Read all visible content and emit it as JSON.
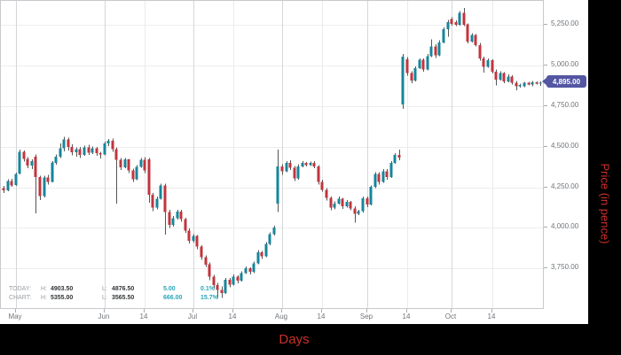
{
  "colors": {
    "up": "#17859a",
    "down": "#c1353e",
    "wick": "#555555",
    "grid_h": "#ededee",
    "grid_v_major": "#d4d6d9",
    "grid_v_minor": "#e9ebec",
    "axis_text": "#6f747a",
    "tick": "#a9abae",
    "border": "#c7c9cc",
    "tag_bg": "#5456a2",
    "tag_text": "#ffffff",
    "axis_title": "#c9302c",
    "band_bg": "#000000",
    "info_label": "#9b9ea2",
    "info_value": "#323538",
    "info_change": "#2aa6b8"
  },
  "info": {
    "rows": [
      {
        "label": "TODAY:",
        "h_label": "H:",
        "high": "4903.50",
        "l_label": "L:",
        "low": "4876.50",
        "change": "5.00",
        "pct": "0.1%"
      },
      {
        "label": "CHART:",
        "h_label": "H:",
        "high": "5355.00",
        "l_label": "L:",
        "low": "3565.50",
        "change": "666.00",
        "pct": "15.7%"
      }
    ]
  },
  "last_price": {
    "value": 4895,
    "label": "4,895.00"
  },
  "chart_data": {
    "type": "candlestick",
    "x_axis": {
      "title": "Days",
      "minor_label": "14",
      "ticks": [
        {
          "label": "May",
          "index": 3
        },
        {
          "label": "Jun",
          "index": 25
        },
        {
          "label": "14",
          "index": 35
        },
        {
          "label": "Jul",
          "index": 47
        },
        {
          "label": "14",
          "index": 57
        },
        {
          "label": "Aug",
          "index": 69
        },
        {
          "label": "14",
          "index": 79
        },
        {
          "label": "Sep",
          "index": 90
        },
        {
          "label": "14",
          "index": 100
        },
        {
          "label": "Oct",
          "index": 111
        },
        {
          "label": "14",
          "index": 121
        }
      ]
    },
    "y_axis": {
      "title": "Price (in pence)",
      "min": 3505,
      "max": 5400,
      "ticks": [
        {
          "price": 5250,
          "label": "5,250.00"
        },
        {
          "price": 5000,
          "label": "5,000.00"
        },
        {
          "price": 4750,
          "label": "4,750.00"
        },
        {
          "price": 4500,
          "label": "4,500.00"
        },
        {
          "price": 4250,
          "label": "4,250.00"
        },
        {
          "price": 4000,
          "label": "4,000.00"
        },
        {
          "price": 3750,
          "label": "3,750.00"
        }
      ]
    },
    "candles": [
      [
        4245,
        4258,
        4215,
        4230
      ],
      [
        4232,
        4300,
        4225,
        4290
      ],
      [
        4290,
        4302,
        4252,
        4262
      ],
      [
        4265,
        4340,
        4258,
        4332
      ],
      [
        4335,
        4482,
        4330,
        4468
      ],
      [
        4468,
        4478,
        4408,
        4425
      ],
      [
        4425,
        4436,
        4368,
        4385
      ],
      [
        4385,
        4422,
        4362,
        4412
      ],
      [
        4440,
        4452,
        4090,
        4312
      ],
      [
        4312,
        4322,
        4172,
        4195
      ],
      [
        4195,
        4322,
        4188,
        4310
      ],
      [
        4310,
        4326,
        4268,
        4284
      ],
      [
        4284,
        4412,
        4280,
        4402
      ],
      [
        4402,
        4452,
        4390,
        4440
      ],
      [
        4440,
        4522,
        4432,
        4490
      ],
      [
        4490,
        4562,
        4472,
        4545
      ],
      [
        4545,
        4556,
        4478,
        4498
      ],
      [
        4498,
        4515,
        4448,
        4465
      ],
      [
        4465,
        4496,
        4440,
        4486
      ],
      [
        4486,
        4500,
        4430,
        4450
      ],
      [
        4450,
        4506,
        4444,
        4496
      ],
      [
        4496,
        4512,
        4450,
        4464
      ],
      [
        4464,
        4502,
        4455,
        4490
      ],
      [
        4490,
        4500,
        4444,
        4460
      ],
      [
        4460,
        4468,
        4428,
        4452
      ],
      [
        4452,
        4532,
        4446,
        4522
      ],
      [
        4522,
        4548,
        4505,
        4536
      ],
      [
        4536,
        4552,
        4468,
        4484
      ],
      [
        4484,
        4495,
        4150,
        4420
      ],
      [
        4420,
        4432,
        4358,
        4374
      ],
      [
        4374,
        4432,
        4368,
        4422
      ],
      [
        4422,
        4426,
        4338,
        4354
      ],
      [
        4354,
        4366,
        4284,
        4300
      ],
      [
        4300,
        4386,
        4294,
        4376
      ],
      [
        4376,
        4432,
        4370,
        4421
      ],
      [
        4421,
        4436,
        4338,
        4355
      ],
      [
        4422,
        4430,
        4155,
        4205
      ],
      [
        4205,
        4216,
        4102,
        4124
      ],
      [
        4124,
        4192,
        4114,
        4180
      ],
      [
        4180,
        4272,
        4174,
        4262
      ],
      [
        4262,
        4272,
        3958,
        4098
      ],
      [
        4098,
        4110,
        3998,
        4018
      ],
      [
        4018,
        4072,
        4008,
        4060
      ],
      [
        4060,
        4112,
        4050,
        4100
      ],
      [
        4100,
        4112,
        4038,
        4054
      ],
      [
        4054,
        4062,
        3968,
        3984
      ],
      [
        3984,
        3996,
        3904,
        3920
      ],
      [
        3920,
        3962,
        3908,
        3950
      ],
      [
        3950,
        3956,
        3868,
        3884
      ],
      [
        3884,
        3892,
        3802,
        3818
      ],
      [
        3818,
        3830,
        3758,
        3774
      ],
      [
        3774,
        3786,
        3678,
        3698
      ],
      [
        3698,
        3710,
        3628,
        3648
      ],
      [
        3648,
        3660,
        3565.5,
        3618
      ],
      [
        3618,
        3640,
        3568,
        3598
      ],
      [
        3598,
        3692,
        3592,
        3680
      ],
      [
        3680,
        3692,
        3632,
        3650
      ],
      [
        3650,
        3712,
        3644,
        3700
      ],
      [
        3700,
        3706,
        3658,
        3674
      ],
      [
        3674,
        3732,
        3668,
        3720
      ],
      [
        3720,
        3762,
        3714,
        3750
      ],
      [
        3750,
        3756,
        3712,
        3728
      ],
      [
        3728,
        3792,
        3722,
        3780
      ],
      [
        3780,
        3862,
        3774,
        3850
      ],
      [
        3850,
        3856,
        3808,
        3824
      ],
      [
        3824,
        3912,
        3818,
        3900
      ],
      [
        3900,
        3972,
        3894,
        3960
      ],
      [
        3960,
        4012,
        3954,
        4002
      ],
      [
        4150,
        4482,
        4098,
        4378
      ],
      [
        4378,
        4392,
        4328,
        4348
      ],
      [
        4348,
        4412,
        4342,
        4400
      ],
      [
        4400,
        4416,
        4358,
        4370
      ],
      [
        4370,
        4382,
        4288,
        4304
      ],
      [
        4304,
        4392,
        4298,
        4380
      ],
      [
        4380,
        4412,
        4374,
        4400
      ],
      [
        4400,
        4406,
        4378,
        4388
      ],
      [
        4388,
        4408,
        4382,
        4400
      ],
      [
        4400,
        4412,
        4368,
        4380
      ],
      [
        4380,
        4386,
        4268,
        4284
      ],
      [
        4284,
        4296,
        4222,
        4234
      ],
      [
        4234,
        4246,
        4168,
        4184
      ],
      [
        4184,
        4192,
        4108,
        4124
      ],
      [
        4124,
        4162,
        4114,
        4150
      ],
      [
        4150,
        4192,
        4144,
        4180
      ],
      [
        4180,
        4186,
        4118,
        4134
      ],
      [
        4134,
        4172,
        4124,
        4160
      ],
      [
        4160,
        4166,
        4108,
        4120
      ],
      [
        4120,
        4132,
        4032,
        4088
      ],
      [
        4088,
        4112,
        4078,
        4102
      ],
      [
        4102,
        4192,
        4096,
        4182
      ],
      [
        4182,
        4192,
        4128,
        4144
      ],
      [
        4144,
        4262,
        4138,
        4252
      ],
      [
        4252,
        4342,
        4246,
        4332
      ],
      [
        4332,
        4342,
        4268,
        4284
      ],
      [
        4284,
        4362,
        4278,
        4350
      ],
      [
        4350,
        4362,
        4298,
        4314
      ],
      [
        4314,
        4412,
        4308,
        4400
      ],
      [
        4400,
        4462,
        4394,
        4450
      ],
      [
        4450,
        4482,
        4418,
        4434
      ],
      [
        4760,
        5072,
        4734,
        5056
      ],
      [
        5040,
        5052,
        4938,
        4954
      ],
      [
        4954,
        4966,
        4893,
        4908
      ],
      [
        4908,
        4996,
        4902,
        4986
      ],
      [
        4986,
        5046,
        4980,
        5036
      ],
      [
        5036,
        5046,
        4962,
        4978
      ],
      [
        4978,
        5072,
        4972,
        5060
      ],
      [
        5060,
        5162,
        5054,
        5120
      ],
      [
        5120,
        5132,
        5048,
        5064
      ],
      [
        5064,
        5156,
        5058,
        5144
      ],
      [
        5144,
        5236,
        5138,
        5226
      ],
      [
        5226,
        5282,
        5178,
        5270
      ],
      [
        5288,
        5300,
        5248,
        5258
      ],
      [
        5268,
        5280,
        5244,
        5254
      ],
      [
        5254,
        5336,
        5248,
        5326
      ],
      [
        5326,
        5355,
        5244,
        5254
      ],
      [
        5254,
        5262,
        5138,
        5148
      ],
      [
        5148,
        5202,
        5142,
        5190
      ],
      [
        5190,
        5196,
        5118,
        5128
      ],
      [
        5128,
        5140,
        5032,
        5044
      ],
      [
        5044,
        5056,
        4958,
        4994
      ],
      [
        4994,
        5046,
        4988,
        5034
      ],
      [
        5034,
        5040,
        4952,
        4964
      ],
      [
        4964,
        4976,
        4878,
        4914
      ],
      [
        4914,
        4966,
        4908,
        4954
      ],
      [
        4954,
        4960,
        4893,
        4904
      ],
      [
        4904,
        4946,
        4898,
        4934
      ],
      [
        4934,
        4940,
        4883,
        4894
      ],
      [
        4894,
        4906,
        4848,
        4874
      ],
      [
        4874,
        4890,
        4864,
        4880
      ],
      [
        4874,
        4900,
        4868,
        4894
      ],
      [
        4894,
        4900,
        4878,
        4884
      ],
      [
        4884,
        4906,
        4874,
        4898
      ],
      [
        4898,
        4904,
        4884,
        4888
      ],
      [
        4890,
        4903.5,
        4876.5,
        4895
      ]
    ]
  }
}
